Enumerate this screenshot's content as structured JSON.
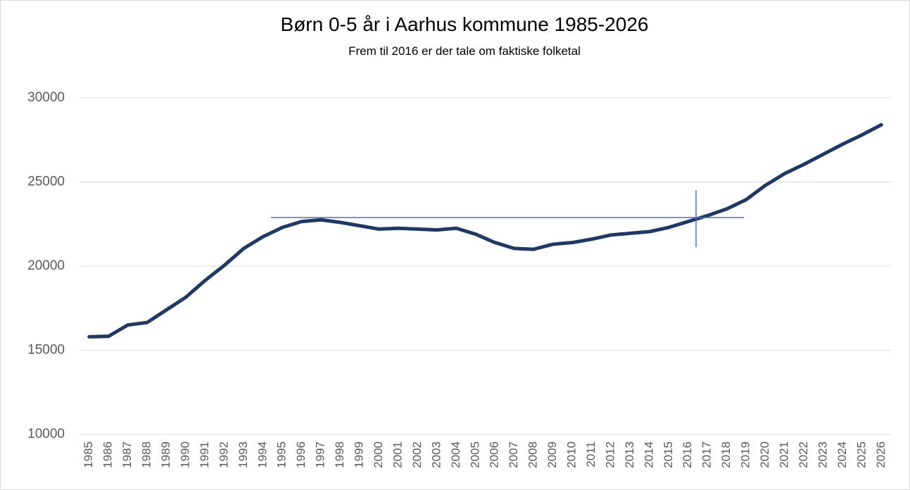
{
  "chart_data": {
    "type": "line",
    "title": "Børn 0-5 år i Aarhus kommune 1985-2026",
    "subtitle": "Frem til 2016 er der tale om faktiske folketal",
    "categories": [
      "1985",
      "1986",
      "1987",
      "1988",
      "1989",
      "1990",
      "1991",
      "1992",
      "1993",
      "1994",
      "1995",
      "1996",
      "1997",
      "1998",
      "1999",
      "2000",
      "2001",
      "2002",
      "2003",
      "2004",
      "2005",
      "2006",
      "2007",
      "2008",
      "2009",
      "2010",
      "2011",
      "2012",
      "2013",
      "2014",
      "2015",
      "2016",
      "2017",
      "2018",
      "2019",
      "2020",
      "2021",
      "2022",
      "2023",
      "2024",
      "2025",
      "2026"
    ],
    "series": [
      {
        "color": "#1f3864",
        "values": [
          15800,
          15830,
          16500,
          16650,
          17400,
          18150,
          19150,
          20050,
          21050,
          21750,
          22300,
          22650,
          22750,
          22600,
          22400,
          22200,
          22250,
          22200,
          22150,
          22250,
          21900,
          21400,
          21050,
          21000,
          21300,
          21400,
          21600,
          21850,
          21950,
          22050,
          22300,
          22650,
          23000,
          23400,
          23950,
          24800,
          25500,
          26050,
          26650,
          27250,
          27800,
          28400
        ]
      }
    ],
    "ylim": [
      10000,
      30000
    ],
    "yticks": [
      10000,
      15000,
      20000,
      25000,
      30000
    ],
    "grid": true
  }
}
